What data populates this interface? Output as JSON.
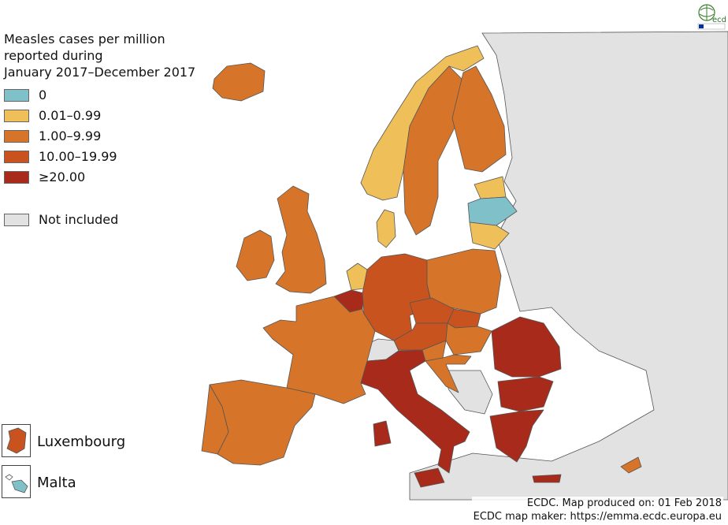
{
  "title_lines": [
    "Measles cases per million",
    "reported during",
    "January 2017–December 2017"
  ],
  "legend": [
    {
      "label": "0",
      "color": "#7fc0c9"
    },
    {
      "label": "0.01–0.99",
      "color": "#efbf5a"
    },
    {
      "label": "1.00–9.99",
      "color": "#d67529"
    },
    {
      "label": "10.00–19.99",
      "color": "#c9531f"
    },
    {
      "label": "≥20.00",
      "color": "#a82a1b"
    }
  ],
  "not_included": {
    "label": "Not included",
    "color": "#e2e2e2"
  },
  "insets": [
    {
      "label": "Luxembourg",
      "color": "#c9531f"
    },
    {
      "label": "Malta",
      "color": "#7fc0c9"
    }
  ],
  "credits": [
    "ECDC. Map produced on: 01 Feb 2018",
    "ECDC map maker: https://emma.ecdc.europa.eu"
  ],
  "logo_text": "ecdc",
  "countries": [
    {
      "name": "Iceland",
      "category": 2
    },
    {
      "name": "Ireland",
      "category": 2
    },
    {
      "name": "United Kingdom",
      "category": 2
    },
    {
      "name": "Norway",
      "category": 1
    },
    {
      "name": "Sweden",
      "category": 2
    },
    {
      "name": "Finland",
      "category": 2
    },
    {
      "name": "Estonia",
      "category": 1
    },
    {
      "name": "Latvia",
      "category": 0
    },
    {
      "name": "Lithuania",
      "category": 1
    },
    {
      "name": "Denmark",
      "category": 1
    },
    {
      "name": "Netherlands",
      "category": 1
    },
    {
      "name": "Belgium",
      "category": 4
    },
    {
      "name": "Germany",
      "category": 3
    },
    {
      "name": "Poland",
      "category": 2
    },
    {
      "name": "Czechia",
      "category": 3
    },
    {
      "name": "Slovakia",
      "category": 3
    },
    {
      "name": "Austria",
      "category": 3
    },
    {
      "name": "Hungary",
      "category": 2
    },
    {
      "name": "Slovenia",
      "category": 2
    },
    {
      "name": "Croatia",
      "category": 2
    },
    {
      "name": "France",
      "category": 2
    },
    {
      "name": "Spain",
      "category": 2
    },
    {
      "name": "Portugal",
      "category": 2
    },
    {
      "name": "Italy",
      "category": 4
    },
    {
      "name": "Romania",
      "category": 4
    },
    {
      "name": "Bulgaria",
      "category": 4
    },
    {
      "name": "Greece",
      "category": 4
    },
    {
      "name": "Cyprus",
      "category": 2
    },
    {
      "name": "Switzerland",
      "category": -1
    },
    {
      "name": "Non-EU territory",
      "category": -1
    }
  ]
}
